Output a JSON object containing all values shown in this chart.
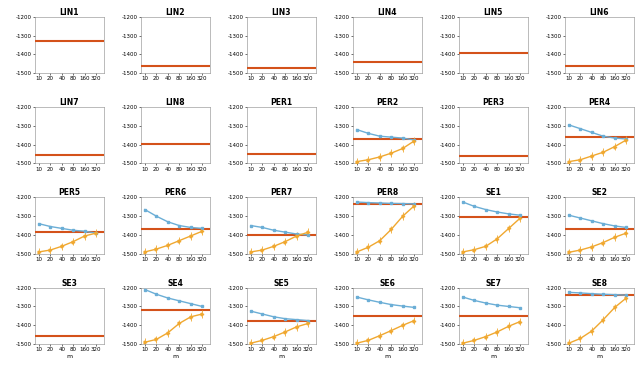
{
  "titles": [
    "LIN1",
    "LIN2",
    "LIN3",
    "LIN4",
    "LIN5",
    "LIN6",
    "LIN7",
    "LIN8",
    "PER1",
    "PER2",
    "PER3",
    "PER4",
    "PER5",
    "PER6",
    "PER7",
    "PER8",
    "SE1",
    "SE2",
    "SE3",
    "SE4",
    "SE5",
    "SE6",
    "SE7",
    "SE8"
  ],
  "x_vals": [
    10,
    20,
    40,
    80,
    160,
    320
  ],
  "orange_line": {
    "LIN1": -1330,
    "LIN2": -1460,
    "LIN3": -1470,
    "LIN4": -1440,
    "LIN5": -1395,
    "LIN6": -1460,
    "LIN7": -1455,
    "LIN8": -1395,
    "PER1": -1450,
    "PER2": -1370,
    "PER3": -1460,
    "PER4": -1360,
    "PER5": -1385,
    "PER6": -1370,
    "PER7": -1400,
    "PER8": -1235,
    "SE1": -1305,
    "SE2": -1370,
    "SE3": -1455,
    "SE4": -1320,
    "SE5": -1375,
    "SE6": -1350,
    "SE7": -1350,
    "SE8": -1240
  },
  "blue_line": {
    "PER2": [
      -1320,
      -1340,
      -1355,
      -1360,
      -1365,
      -1375
    ],
    "PER4": [
      -1295,
      -1315,
      -1335,
      -1355,
      -1365,
      -1370
    ],
    "PER5": [
      -1340,
      -1355,
      -1365,
      -1375,
      -1380,
      -1390
    ],
    "PER6": [
      -1265,
      -1300,
      -1330,
      -1350,
      -1360,
      -1365
    ],
    "PER7": [
      -1350,
      -1360,
      -1375,
      -1385,
      -1395,
      -1400
    ],
    "PER8": [
      -1225,
      -1228,
      -1230,
      -1232,
      -1233,
      -1235
    ],
    "SE1": [
      -1225,
      -1248,
      -1265,
      -1278,
      -1288,
      -1295
    ],
    "SE2": [
      -1295,
      -1310,
      -1325,
      -1340,
      -1352,
      -1360
    ],
    "SE4": [
      -1210,
      -1235,
      -1255,
      -1270,
      -1285,
      -1300
    ],
    "SE5": [
      -1325,
      -1340,
      -1355,
      -1365,
      -1370,
      -1375
    ],
    "SE6": [
      -1250,
      -1265,
      -1278,
      -1290,
      -1298,
      -1305
    ],
    "SE7": [
      -1250,
      -1268,
      -1282,
      -1293,
      -1300,
      -1307
    ],
    "SE8": [
      -1225,
      -1228,
      -1232,
      -1235,
      -1237,
      -1240
    ]
  },
  "yellow_line": {
    "PER2": [
      -1490,
      -1480,
      -1465,
      -1445,
      -1420,
      -1380
    ],
    "PER4": [
      -1490,
      -1480,
      -1460,
      -1440,
      -1410,
      -1375
    ],
    "PER5": [
      -1490,
      -1480,
      -1460,
      -1435,
      -1405,
      -1390
    ],
    "PER6": [
      -1490,
      -1475,
      -1455,
      -1430,
      -1405,
      -1380
    ],
    "PER7": [
      -1490,
      -1480,
      -1460,
      -1435,
      -1405,
      -1385
    ],
    "PER8": [
      -1490,
      -1465,
      -1430,
      -1370,
      -1300,
      -1245
    ],
    "SE1": [
      -1490,
      -1478,
      -1460,
      -1420,
      -1365,
      -1310
    ],
    "SE2": [
      -1492,
      -1480,
      -1463,
      -1440,
      -1412,
      -1390
    ],
    "SE4": [
      -1490,
      -1475,
      -1440,
      -1390,
      -1355,
      -1340
    ],
    "SE5": [
      -1495,
      -1480,
      -1460,
      -1435,
      -1408,
      -1390
    ],
    "SE6": [
      -1495,
      -1480,
      -1455,
      -1428,
      -1400,
      -1375
    ],
    "SE7": [
      -1495,
      -1480,
      -1460,
      -1435,
      -1405,
      -1380
    ],
    "SE8": [
      -1495,
      -1470,
      -1430,
      -1370,
      -1305,
      -1255
    ]
  },
  "yellow_err": {
    "PER2": [
      20,
      20,
      20,
      20,
      20,
      20
    ],
    "PER4": [
      20,
      20,
      20,
      20,
      20,
      20
    ],
    "PER5": [
      20,
      20,
      20,
      20,
      20,
      20
    ],
    "PER6": [
      20,
      20,
      20,
      20,
      20,
      20
    ],
    "PER7": [
      20,
      20,
      20,
      20,
      20,
      20
    ],
    "PER8": [
      20,
      20,
      20,
      20,
      20,
      20
    ],
    "SE1": [
      20,
      20,
      20,
      20,
      20,
      20
    ],
    "SE2": [
      20,
      20,
      20,
      20,
      20,
      20
    ],
    "SE4": [
      20,
      20,
      20,
      20,
      20,
      20
    ],
    "SE5": [
      20,
      20,
      20,
      20,
      20,
      20
    ],
    "SE6": [
      20,
      20,
      20,
      20,
      20,
      20
    ],
    "SE7": [
      20,
      20,
      20,
      20,
      20,
      20
    ],
    "SE8": [
      20,
      20,
      20,
      20,
      20,
      20
    ]
  },
  "blue_err": {
    "PER2": [
      5,
      5,
      5,
      5,
      5,
      5
    ],
    "PER4": [
      5,
      5,
      5,
      5,
      5,
      5
    ],
    "PER5": [
      5,
      5,
      5,
      5,
      5,
      5
    ],
    "PER6": [
      5,
      5,
      5,
      5,
      5,
      5
    ],
    "PER7": [
      5,
      5,
      5,
      5,
      5,
      5
    ],
    "PER8": [
      3,
      3,
      3,
      3,
      3,
      3
    ],
    "SE1": [
      5,
      5,
      5,
      5,
      5,
      5
    ],
    "SE2": [
      5,
      5,
      5,
      5,
      5,
      5
    ],
    "SE4": [
      5,
      5,
      5,
      5,
      5,
      5
    ],
    "SE5": [
      5,
      5,
      5,
      5,
      5,
      5
    ],
    "SE6": [
      5,
      5,
      5,
      5,
      5,
      5
    ],
    "SE7": [
      5,
      5,
      5,
      5,
      5,
      5
    ],
    "SE8": [
      3,
      3,
      3,
      3,
      3,
      3
    ]
  },
  "orange_color": "#D4521A",
  "blue_color": "#6BAED6",
  "yellow_color": "#F0A830",
  "bg_color": "#FFFFFF",
  "ylim": [
    -1500,
    -1200
  ],
  "yticks": [
    -1200,
    -1300,
    -1400,
    -1500
  ],
  "xticks": [
    10,
    20,
    40,
    80,
    160,
    320
  ]
}
